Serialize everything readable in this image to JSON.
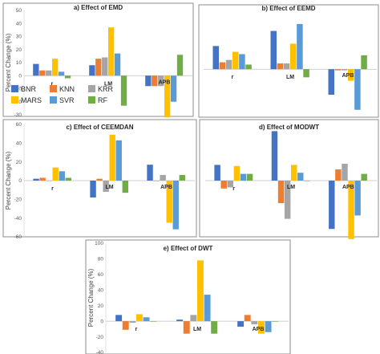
{
  "chart_data": [
    {
      "type": "bar",
      "title": "a) Effect of EMD",
      "ylabel": "Percent Change (%)",
      "ylim": [
        -30,
        50
      ],
      "yticks": [
        -30,
        -20,
        -10,
        0,
        10,
        20,
        30,
        40,
        50
      ],
      "categories": [
        "r",
        "LM",
        "APB"
      ],
      "series": [
        {
          "name": "BNR",
          "values": [
            9,
            8,
            -8
          ]
        },
        {
          "name": "KNN",
          "values": [
            4,
            13,
            -8
          ]
        },
        {
          "name": "KRR",
          "values": [
            4,
            14,
            -8
          ]
        },
        {
          "name": "MARS",
          "values": [
            13,
            37,
            -32
          ]
        },
        {
          "name": "SVR",
          "values": [
            3,
            17,
            -20
          ]
        },
        {
          "name": "RF",
          "values": [
            -2,
            -23,
            16
          ]
        }
      ]
    },
    {
      "type": "bar",
      "title": "b) Effect of EEMD",
      "ylabel": "",
      "ylim": [
        -40,
        50
      ],
      "yticks": [],
      "categories": [
        "r",
        "LM",
        "APB"
      ],
      "series": [
        {
          "name": "BNR",
          "values": [
            20,
            33,
            -22
          ]
        },
        {
          "name": "KNN",
          "values": [
            6,
            5,
            -1
          ]
        },
        {
          "name": "KRR",
          "values": [
            8,
            5,
            -1
          ]
        },
        {
          "name": "MARS",
          "values": [
            15,
            22,
            -10
          ]
        },
        {
          "name": "SVR",
          "values": [
            13,
            39,
            -35
          ]
        },
        {
          "name": "RF",
          "values": [
            4,
            -7,
            12
          ]
        }
      ]
    },
    {
      "type": "bar",
      "title": "c) Effect of CEEMDAN",
      "ylabel": "Percent Change (%)",
      "ylim": [
        -60,
        60
      ],
      "yticks": [
        -60,
        -40,
        -20,
        0,
        20,
        40,
        60
      ],
      "categories": [
        "r",
        "LM",
        "APB"
      ],
      "series": [
        {
          "name": "BNR",
          "values": [
            2,
            -18,
            17
          ]
        },
        {
          "name": "KNN",
          "values": [
            3,
            2,
            0
          ]
        },
        {
          "name": "KRR",
          "values": [
            0,
            -12,
            6
          ]
        },
        {
          "name": "MARS",
          "values": [
            14,
            49,
            -45
          ]
        },
        {
          "name": "SVR",
          "values": [
            10,
            43,
            -52
          ]
        },
        {
          "name": "RF",
          "values": [
            3,
            -13,
            6
          ]
        }
      ]
    },
    {
      "type": "bar",
      "title": "d) Effect of MODWT",
      "ylabel": "",
      "ylim": [
        -50,
        50
      ],
      "yticks": [],
      "categories": [
        "r",
        "LM",
        "APB"
      ],
      "series": [
        {
          "name": "BNR",
          "values": [
            14,
            44,
            -43
          ]
        },
        {
          "name": "KNN",
          "values": [
            -7,
            -20,
            10
          ]
        },
        {
          "name": "KRR",
          "values": [
            -6,
            -34,
            15
          ]
        },
        {
          "name": "MARS",
          "values": [
            13,
            14,
            -52
          ]
        },
        {
          "name": "SVR",
          "values": [
            6,
            7,
            -31
          ]
        },
        {
          "name": "RF",
          "values": [
            6,
            0,
            6
          ]
        }
      ]
    },
    {
      "type": "bar",
      "title": "e) Effect of DWT",
      "ylabel": "Percent Change (%)",
      "ylim": [
        -40,
        100
      ],
      "yticks": [
        -40,
        -20,
        0,
        20,
        40,
        60,
        80,
        100
      ],
      "categories": [
        "r",
        "LM",
        "APB"
      ],
      "series": [
        {
          "name": "BNR",
          "values": [
            8,
            2,
            -7
          ]
        },
        {
          "name": "KNN",
          "values": [
            -11,
            -16,
            8
          ]
        },
        {
          "name": "KRR",
          "values": [
            -2,
            8,
            -4
          ]
        },
        {
          "name": "MARS",
          "values": [
            9,
            78,
            -16
          ]
        },
        {
          "name": "SVR",
          "values": [
            5,
            34,
            -14
          ]
        },
        {
          "name": "RF",
          "values": [
            0,
            -16,
            0
          ]
        }
      ]
    }
  ],
  "legend": [
    {
      "name": "BNR",
      "color": "#4472C4"
    },
    {
      "name": "KNN",
      "color": "#ED7D31"
    },
    {
      "name": "KRR",
      "color": "#A5A5A5"
    },
    {
      "name": "MARS",
      "color": "#FFC000"
    },
    {
      "name": "SVR",
      "color": "#5B9BD5"
    },
    {
      "name": "RF",
      "color": "#70AD47"
    }
  ]
}
